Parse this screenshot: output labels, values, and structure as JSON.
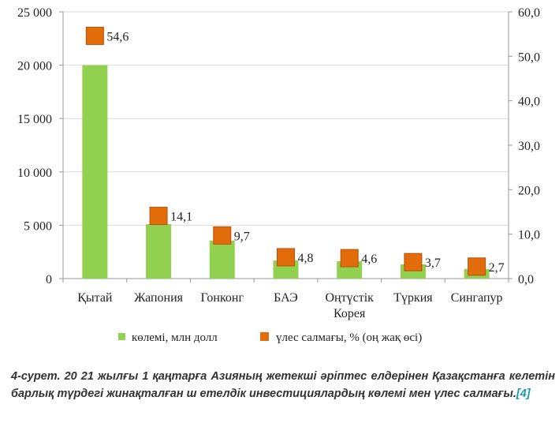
{
  "chart_data": {
    "type": "bar",
    "categories": [
      "Қытай",
      "Жапония",
      "Гонконг",
      "БАЭ",
      "Оңтүстік Корея",
      "Түркия",
      "Сингапур"
    ],
    "category_lines": [
      [
        "Қытай"
      ],
      [
        "Жапония"
      ],
      [
        "Гонконг"
      ],
      [
        "БАЭ"
      ],
      [
        "Оңтүстік",
        "Корея"
      ],
      [
        "Түркия"
      ],
      [
        "Сингапур"
      ]
    ],
    "series": [
      {
        "name": "көлемі, млн долл",
        "type": "bar",
        "axis": "left",
        "color": "#92d050",
        "values": [
          20000,
          5100,
          3550,
          1700,
          1630,
          1330,
          890
        ]
      },
      {
        "name": "үлес салмағы, % (оң жақ өсі)",
        "type": "marker",
        "axis": "right",
        "color": "#e36c0a",
        "values": [
          54.6,
          14.1,
          9.7,
          4.8,
          4.6,
          3.7,
          2.7
        ],
        "labels": [
          "54,6",
          "14,1",
          "9,7",
          "4,8",
          "4,6",
          "3,7",
          "2,7"
        ]
      }
    ],
    "left_axis": {
      "ylim": [
        0,
        25000
      ],
      "ticks": [
        "0",
        "5 000",
        "10 000",
        "15 000",
        "20 000",
        "25 000"
      ]
    },
    "right_axis": {
      "ylim": [
        0,
        60
      ],
      "ticks": [
        "0,0",
        "10,0",
        "20,0",
        "30,0",
        "40,0",
        "50,0",
        "60,0"
      ]
    },
    "grid": true,
    "legend": "bottom"
  },
  "caption": {
    "text": "4-сурет. 20 21 жылғы 1 қаңтарға Азияның жетекші әріптес елдерінен Қазақстанға келетін барлық түрдегі жинақталған ш етелдік инвестициялардың көлемі мен үлес салмағы.",
    "ref": "[4]"
  }
}
